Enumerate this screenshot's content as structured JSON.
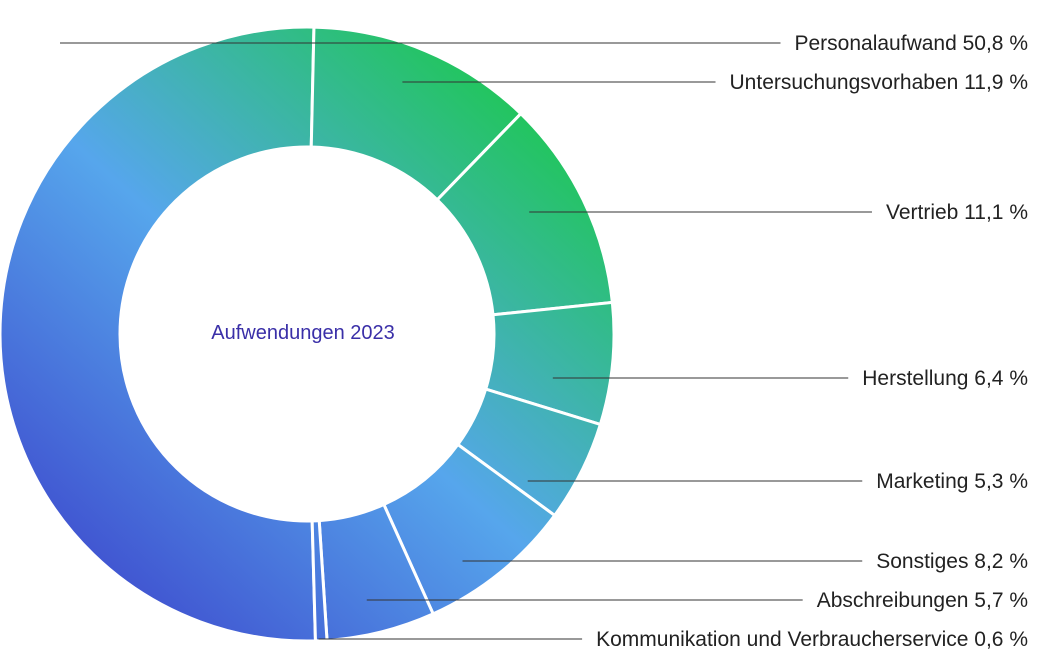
{
  "chart_data": {
    "type": "pie",
    "variant": "donut",
    "title": "Aufwendungen 2023",
    "categories": [
      "Personalaufwand",
      "Untersuchungsvorhaben",
      "Vertrieb",
      "Herstellung",
      "Marketing",
      "Sonstiges",
      "Abschreibungen",
      "Kommunikation und Verbraucherservice"
    ],
    "values": [
      50.8,
      11.9,
      11.1,
      6.4,
      5.3,
      8.2,
      5.7,
      0.6
    ],
    "value_labels": [
      "Personalaufwand 50,8 %",
      "Untersuchungsvorhaben 11,9 %",
      "Vertrieb 11,1 %",
      "Herstellung 6,4 %",
      "Marketing 5,3 %",
      "Sonstiges 8,2 %",
      "Abschreibungen 5,7 %",
      "Kommunikation und Verbraucherservice 0,6 %"
    ],
    "unit": "%",
    "legend": "right, leader lines",
    "colors": {
      "gradient_green": "#22c55e",
      "gradient_blue": "#56a6ec",
      "gradient_indigo": "#3f4fcf",
      "separator": "#ffffff",
      "leader_line": "#333333",
      "title_color": "#3a2fa8"
    }
  }
}
